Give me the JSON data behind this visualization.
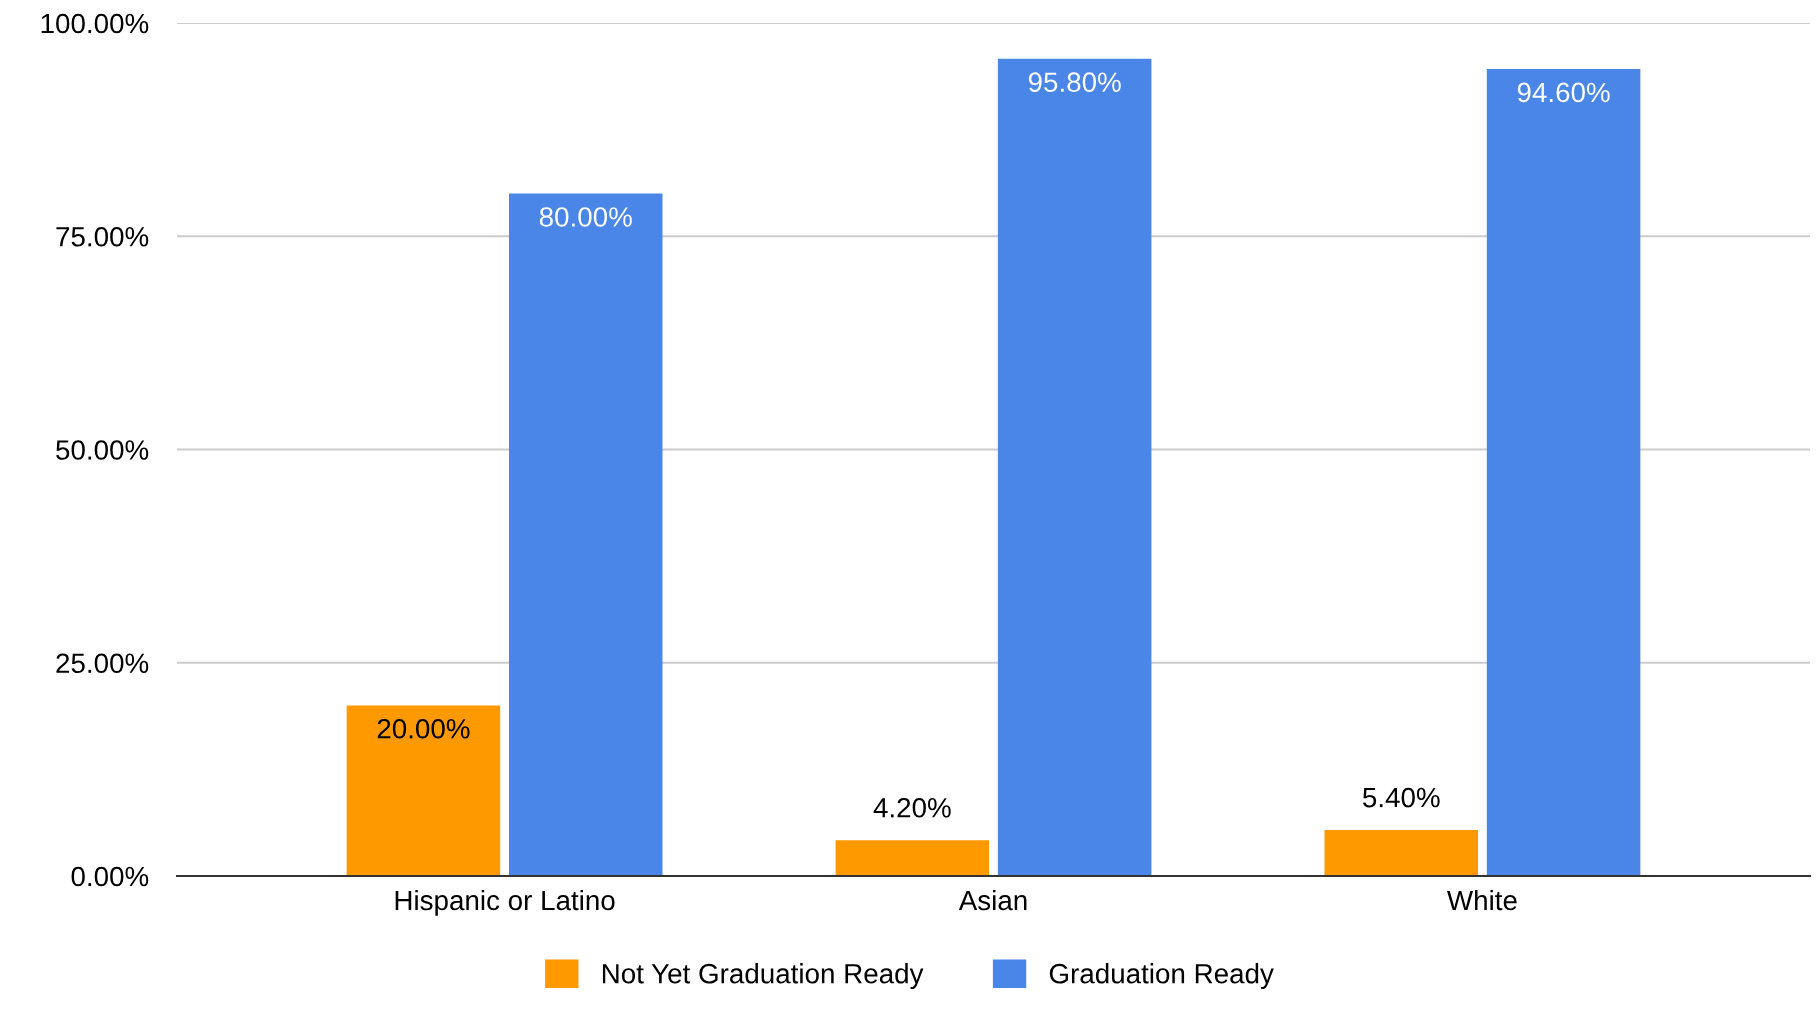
{
  "chart_data": {
    "type": "bar",
    "categories": [
      "Hispanic or Latino",
      "Asian",
      "White"
    ],
    "series": [
      {
        "name": "Not Yet Graduation Ready",
        "color": "#ff9900",
        "values": [
          20,
          4.2,
          5.4
        ],
        "value_labels": [
          "20.00%",
          "4.20%",
          "5.40%"
        ]
      },
      {
        "name": "Graduation Ready",
        "color": "#4a86e8",
        "values": [
          80,
          95.8,
          94.6
        ],
        "value_labels": [
          "80.00%",
          "95.80%",
          "94.60%"
        ]
      }
    ],
    "ylim": [
      0,
      100
    ],
    "yticks": [
      {
        "value": 0,
        "label": "0.00%"
      },
      {
        "value": 25,
        "label": "25.00%"
      },
      {
        "value": 50,
        "label": "50.00%"
      },
      {
        "value": 75,
        "label": "75.00%"
      },
      {
        "value": 100,
        "label": "100.00%"
      }
    ],
    "grid": "y",
    "legend": "bottom"
  }
}
